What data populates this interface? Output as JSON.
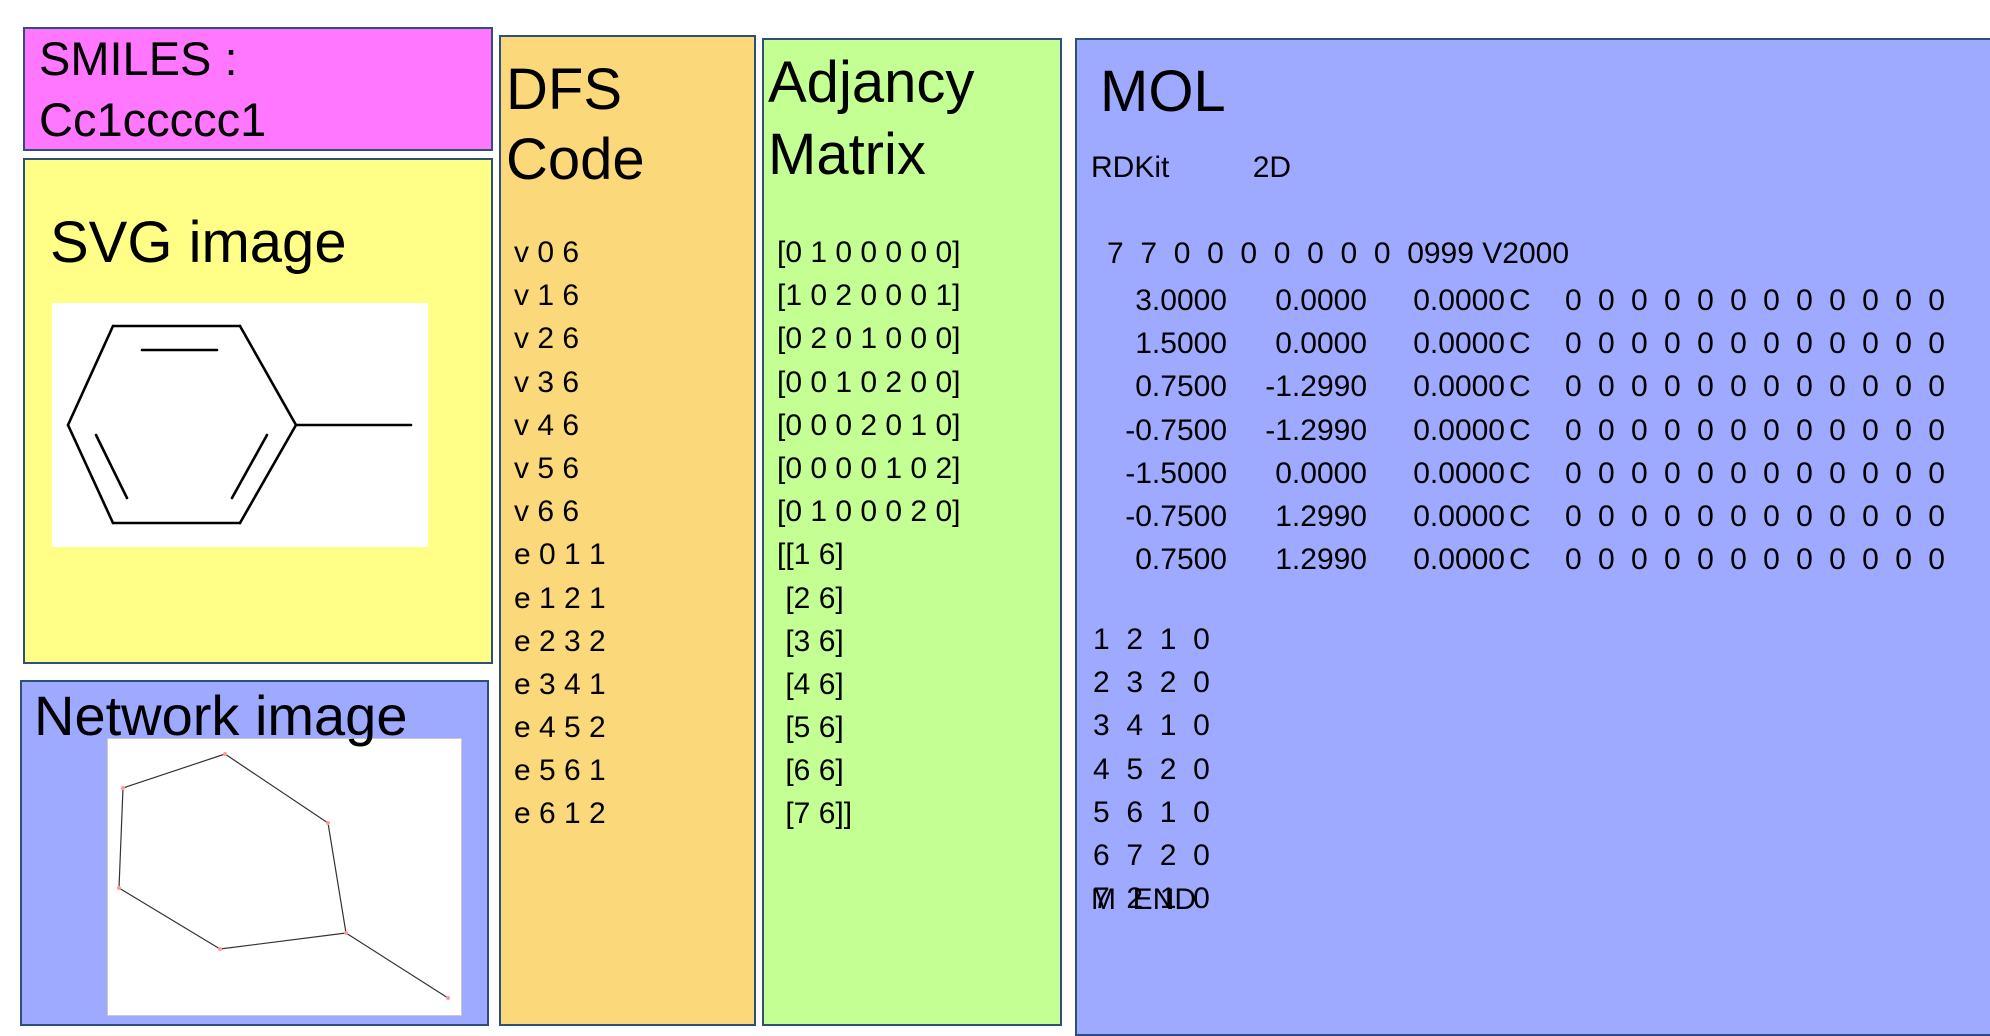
{
  "smiles": {
    "label": "SMILES :",
    "value": "Cc1ccccc1"
  },
  "svg_panel": {
    "title": "SVG image"
  },
  "network_panel": {
    "title": "Network image"
  },
  "dfs_panel": {
    "title_line1": "DFS",
    "title_line2": "Code",
    "rows": [
      "v 0 6",
      "v 1 6",
      "v 2 6",
      "v 3 6",
      "v 4 6",
      "v 5 6",
      "v 6 6",
      "e 0 1 1",
      "e 1 2 1",
      "e 2 3 2",
      "e 3 4 1",
      "e 4 5 2",
      "e 5 6 1",
      "e 6 1 2"
    ]
  },
  "adj_panel": {
    "title_line1": "Adjancy",
    "title_line2": "Matrix",
    "rows": [
      "[0 1 0 0 0 0 0]",
      "[1 0 2 0 0 0 1]",
      "[0 2 0 1 0 0 0]",
      "[0 0 1 0 2 0 0]",
      "[0 0 0 2 0 1 0]",
      "[0 0 0 0 1 0 2]",
      "[0 1 0 0 0 2 0]",
      "[[1 6]",
      " [2 6]",
      " [3 6]",
      " [4 6]",
      " [5 6]",
      " [6 6]",
      " [7 6]]"
    ]
  },
  "mol_panel": {
    "title": "MOL",
    "header": "RDKit          2D",
    "counts": "7  7  0  0  0  0  0  0  0  0999 V2000",
    "atoms": [
      [
        "3.0000",
        "0.0000",
        "0.0000",
        "C",
        "0  0  0  0  0  0  0  0  0  0  0  0"
      ],
      [
        "1.5000",
        "0.0000",
        "0.0000",
        "C",
        "0  0  0  0  0  0  0  0  0  0  0  0"
      ],
      [
        "0.7500",
        "-1.2990",
        "0.0000",
        "C",
        "0  0  0  0  0  0  0  0  0  0  0  0"
      ],
      [
        "-0.7500",
        "-1.2990",
        "0.0000",
        "C",
        "0  0  0  0  0  0  0  0  0  0  0  0"
      ],
      [
        "-1.5000",
        "0.0000",
        "0.0000",
        "C",
        "0  0  0  0  0  0  0  0  0  0  0  0"
      ],
      [
        "-0.7500",
        "1.2990",
        "0.0000",
        "C",
        "0  0  0  0  0  0  0  0  0  0  0  0"
      ],
      [
        "0.7500",
        "1.2990",
        "0.0000",
        "C",
        "0  0  0  0  0  0  0  0  0  0  0  0"
      ]
    ],
    "bonds": [
      "1  2  1  0",
      "2  3  2  0",
      "3  4  1  0",
      "4  5  2  0",
      "5  6  1  0",
      "6  7  2  0",
      "7  2  1  0"
    ],
    "end": "M  END"
  },
  "colors": {
    "smiles_bg": "#ff77ff",
    "svg_bg": "#ffff88",
    "network_bg": "#9eaaff",
    "dfs_bg": "#fbd97a",
    "adj_bg": "#c3ff93",
    "mol_bg": "#9eaaff",
    "border": "#2d4f7c"
  }
}
